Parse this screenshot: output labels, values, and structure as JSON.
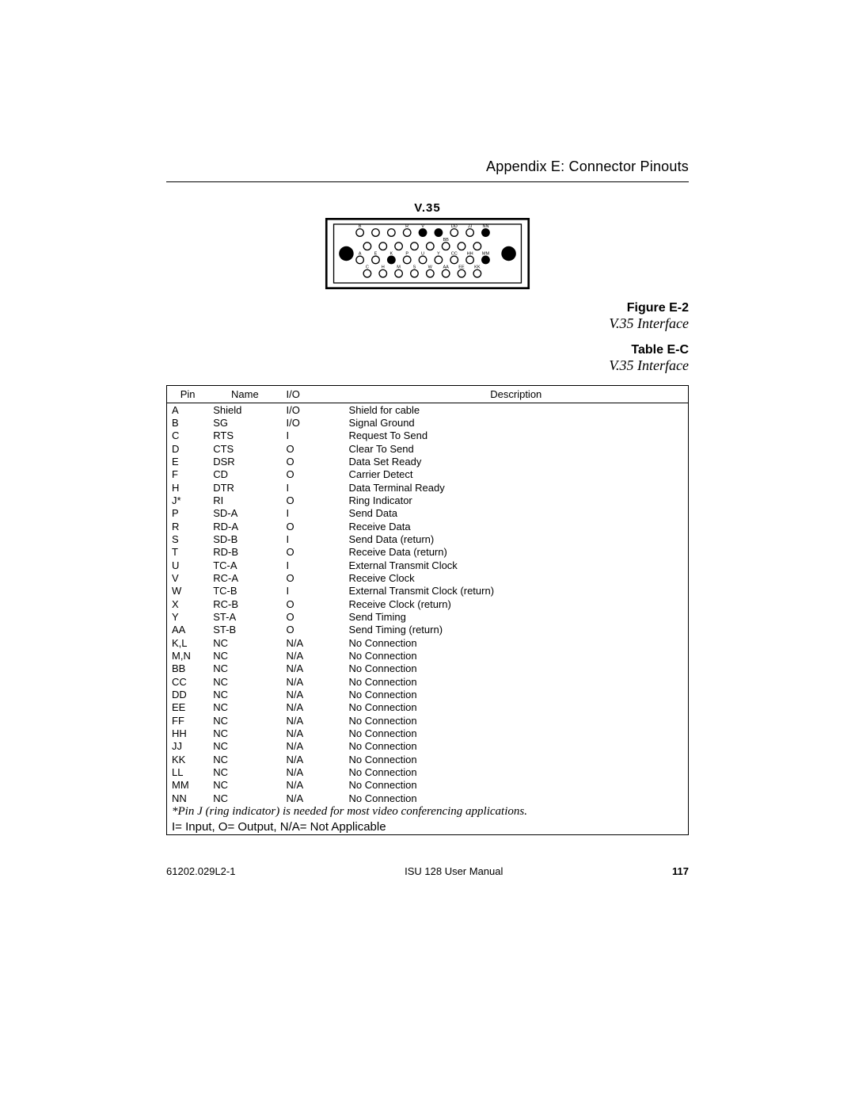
{
  "header": {
    "appendix": "Appendix E: Connector Pinouts"
  },
  "figure": {
    "connector_label": "V.35",
    "number": "Figure E-2",
    "title": "V.35 Interface",
    "diagram": {
      "outer": {
        "stroke": "#000000",
        "fill": "#ffffff",
        "stroke_width": 2
      },
      "inner": {
        "stroke": "#000000",
        "fill": "#ffffff",
        "stroke_width": 1
      },
      "screw": {
        "fill": "#000000",
        "r": 7
      },
      "pin_open": {
        "fill": "#ffffff",
        "stroke": "#000000",
        "r": 3.6
      },
      "pin_filled": {
        "fill": "#000000",
        "stroke": "#000000",
        "r": 3.6
      },
      "rows": [
        {
          "y": 12,
          "cols": 9,
          "xstart": 24,
          "xstep": 16.5,
          "labels": [
            "B",
            "D",
            "F",
            "J",
            "L",
            "N",
            "R",
            "",
            "",
            "",
            "",
            "",
            "",
            "",
            "",
            "",
            ""
          ],
          "extra_labels": [
            {
              "i": 7,
              "t": "T"
            },
            {
              "i": 8,
              "t": ""
            }
          ],
          "top_labels": [
            "B",
            "",
            "",
            "",
            "",
            "",
            "R",
            "V",
            "",
            "",
            "",
            "DD",
            "",
            "JJ",
            "",
            "NN"
          ]
        },
        {
          "y": 24,
          "cols": 8,
          "xstart": 32,
          "xstep": 16.5
        },
        {
          "y": 36,
          "cols": 9,
          "xstart": 24,
          "xstep": 16.5,
          "mid_labels": [
            "A",
            "",
            "E",
            "",
            "K",
            "",
            "P",
            "",
            "U",
            "",
            "Y",
            "",
            "CC",
            "",
            "HH",
            "",
            "MM"
          ]
        },
        {
          "y": 48,
          "cols": 8,
          "xstart": 32,
          "xstep": 16.5
        }
      ],
      "row1_labels_above": [
        "B",
        "",
        "",
        "",
        "",
        "",
        "R",
        "V",
        "",
        "",
        "",
        "DD",
        "",
        "JJ",
        "",
        "NN"
      ]
    }
  },
  "table": {
    "number": "Table E-C",
    "title": "V.35 Interface",
    "columns": [
      "Pin",
      "Name",
      "I/O",
      "Description"
    ],
    "rows": [
      [
        "A",
        "Shield",
        "I/O",
        "Shield for cable"
      ],
      [
        "B",
        "SG",
        "I/O",
        "Signal Ground"
      ],
      [
        "C",
        "RTS",
        "I",
        "Request To Send"
      ],
      [
        "D",
        "CTS",
        "O",
        "Clear To Send"
      ],
      [
        "E",
        "DSR",
        "O",
        "Data Set Ready"
      ],
      [
        "F",
        "CD",
        "O",
        "Carrier Detect"
      ],
      [
        "H",
        "DTR",
        "I",
        "Data Terminal Ready"
      ],
      [
        "J*",
        "RI",
        "O",
        "Ring Indicator"
      ],
      [
        "P",
        "SD-A",
        "I",
        "Send Data"
      ],
      [
        "R",
        "RD-A",
        "O",
        "Receive Data"
      ],
      [
        "S",
        "SD-B",
        "I",
        "Send Data (return)"
      ],
      [
        "T",
        "RD-B",
        "O",
        "Receive Data (return)"
      ],
      [
        "U",
        "TC-A",
        "I",
        "External Transmit Clock"
      ],
      [
        "V",
        "RC-A",
        "O",
        "Receive Clock"
      ],
      [
        "W",
        "TC-B",
        "I",
        "External Transmit Clock (return)"
      ],
      [
        "X",
        "RC-B",
        "O",
        "Receive Clock (return)"
      ],
      [
        "Y",
        "ST-A",
        "O",
        "Send Timing"
      ],
      [
        "AA",
        "ST-B",
        "O",
        "Send Timing (return)"
      ],
      [
        "K,L",
        "NC",
        "N/A",
        "No Connection"
      ],
      [
        "M,N",
        "NC",
        "N/A",
        "No Connection"
      ],
      [
        "BB",
        "NC",
        "N/A",
        "No Connection"
      ],
      [
        "CC",
        "NC",
        "N/A",
        "No Connection"
      ],
      [
        "DD",
        "NC",
        "N/A",
        "No Connection"
      ],
      [
        "EE",
        "NC",
        "N/A",
        "No Connection"
      ],
      [
        "FF",
        "NC",
        "N/A",
        "No Connection"
      ],
      [
        "HH",
        "NC",
        "N/A",
        "No Connection"
      ],
      [
        "JJ",
        "NC",
        "N/A",
        "No Connection"
      ],
      [
        "KK",
        "NC",
        "N/A",
        "No Connection"
      ],
      [
        "LL",
        "NC",
        "N/A",
        "No Connection"
      ],
      [
        "MM",
        "NC",
        "N/A",
        "No Connection"
      ],
      [
        "NN",
        "NC",
        "N/A",
        "No Connection"
      ]
    ],
    "footnote": "*Pin J (ring indicator) is needed for most video conferencing applications.",
    "legend": "I= Input, O= Output, N/A= Not Applicable"
  },
  "footer": {
    "doc_number": "61202.029L2-1",
    "manual_title": "ISU 128 User Manual",
    "page_number": "117"
  },
  "colors": {
    "text": "#000000",
    "background": "#ffffff",
    "rule": "#000000"
  }
}
